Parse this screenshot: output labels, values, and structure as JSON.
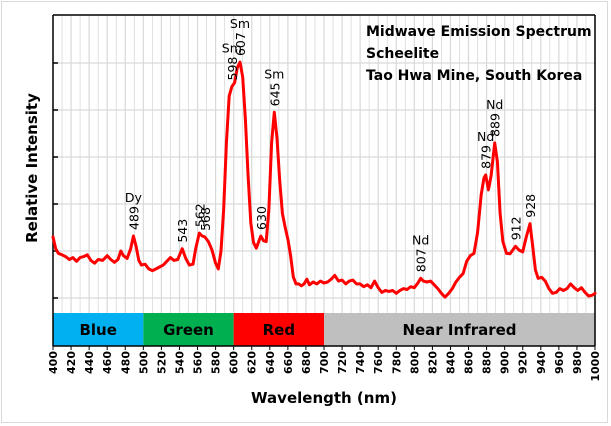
{
  "chart_data": {
    "type": "line",
    "title": [
      "Midwave Emission Spectrum",
      "Scheelite",
      "Tao Hwa Mine, South Korea"
    ],
    "xlabel": "Wavelength (nm)",
    "ylabel": "Relative Intensity",
    "xlim": [
      400,
      1000
    ],
    "ylim": [
      0,
      7
    ],
    "x_ticks": [
      400,
      420,
      440,
      460,
      480,
      500,
      520,
      540,
      560,
      580,
      600,
      620,
      640,
      660,
      680,
      700,
      720,
      740,
      760,
      780,
      800,
      820,
      840,
      860,
      880,
      900,
      920,
      940,
      960,
      980,
      1000
    ],
    "y_ticks": [
      1,
      2,
      3,
      4,
      5,
      6
    ],
    "y_tick_labels_visible": false,
    "grid": true,
    "series": [
      {
        "name": "Emission",
        "color": "#ff0000",
        "points": [
          [
            400,
            2.3
          ],
          [
            403,
            2.05
          ],
          [
            406,
            1.95
          ],
          [
            410,
            1.92
          ],
          [
            414,
            1.88
          ],
          [
            418,
            1.82
          ],
          [
            422,
            1.86
          ],
          [
            426,
            1.78
          ],
          [
            430,
            1.86
          ],
          [
            434,
            1.88
          ],
          [
            438,
            1.92
          ],
          [
            442,
            1.8
          ],
          [
            446,
            1.74
          ],
          [
            450,
            1.82
          ],
          [
            455,
            1.8
          ],
          [
            460,
            1.9
          ],
          [
            464,
            1.82
          ],
          [
            468,
            1.76
          ],
          [
            472,
            1.82
          ],
          [
            475,
            2.0
          ],
          [
            478,
            1.9
          ],
          [
            482,
            1.84
          ],
          [
            486,
            2.05
          ],
          [
            489,
            2.32
          ],
          [
            492,
            2.1
          ],
          [
            495,
            1.8
          ],
          [
            498,
            1.7
          ],
          [
            502,
            1.72
          ],
          [
            506,
            1.62
          ],
          [
            510,
            1.58
          ],
          [
            514,
            1.62
          ],
          [
            518,
            1.66
          ],
          [
            522,
            1.7
          ],
          [
            526,
            1.78
          ],
          [
            530,
            1.86
          ],
          [
            534,
            1.8
          ],
          [
            538,
            1.82
          ],
          [
            543,
            2.05
          ],
          [
            547,
            1.84
          ],
          [
            551,
            1.7
          ],
          [
            555,
            1.72
          ],
          [
            558,
            2.05
          ],
          [
            562,
            2.38
          ],
          [
            565,
            2.32
          ],
          [
            568,
            2.3
          ],
          [
            572,
            2.2
          ],
          [
            576,
            2.02
          ],
          [
            580,
            1.74
          ],
          [
            583,
            1.62
          ],
          [
            586,
            2.0
          ],
          [
            589,
            2.9
          ],
          [
            592,
            4.3
          ],
          [
            595,
            5.3
          ],
          [
            598,
            5.5
          ],
          [
            601,
            5.58
          ],
          [
            604,
            5.9
          ],
          [
            607,
            6.02
          ],
          [
            610,
            5.7
          ],
          [
            613,
            4.8
          ],
          [
            616,
            3.6
          ],
          [
            619,
            2.6
          ],
          [
            622,
            2.18
          ],
          [
            625,
            2.06
          ],
          [
            628,
            2.22
          ],
          [
            630,
            2.32
          ],
          [
            633,
            2.22
          ],
          [
            636,
            2.2
          ],
          [
            639,
            2.9
          ],
          [
            642,
            4.3
          ],
          [
            645,
            4.95
          ],
          [
            648,
            4.4
          ],
          [
            651,
            3.5
          ],
          [
            654,
            2.8
          ],
          [
            657,
            2.5
          ],
          [
            660,
            2.25
          ],
          [
            663,
            1.9
          ],
          [
            666,
            1.45
          ],
          [
            669,
            1.3
          ],
          [
            672,
            1.3
          ],
          [
            675,
            1.26
          ],
          [
            678,
            1.3
          ],
          [
            681,
            1.4
          ],
          [
            684,
            1.28
          ],
          [
            688,
            1.34
          ],
          [
            692,
            1.3
          ],
          [
            696,
            1.36
          ],
          [
            700,
            1.32
          ],
          [
            704,
            1.34
          ],
          [
            708,
            1.4
          ],
          [
            712,
            1.48
          ],
          [
            716,
            1.36
          ],
          [
            720,
            1.38
          ],
          [
            724,
            1.3
          ],
          [
            728,
            1.36
          ],
          [
            732,
            1.38
          ],
          [
            736,
            1.3
          ],
          [
            740,
            1.3
          ],
          [
            744,
            1.24
          ],
          [
            748,
            1.28
          ],
          [
            752,
            1.22
          ],
          [
            756,
            1.36
          ],
          [
            760,
            1.22
          ],
          [
            764,
            1.12
          ],
          [
            768,
            1.16
          ],
          [
            772,
            1.14
          ],
          [
            776,
            1.16
          ],
          [
            780,
            1.1
          ],
          [
            784,
            1.16
          ],
          [
            788,
            1.2
          ],
          [
            792,
            1.18
          ],
          [
            796,
            1.24
          ],
          [
            800,
            1.22
          ],
          [
            804,
            1.32
          ],
          [
            807,
            1.42
          ],
          [
            810,
            1.36
          ],
          [
            814,
            1.34
          ],
          [
            818,
            1.36
          ],
          [
            822,
            1.28
          ],
          [
            826,
            1.2
          ],
          [
            830,
            1.1
          ],
          [
            834,
            1.02
          ],
          [
            838,
            1.1
          ],
          [
            842,
            1.2
          ],
          [
            846,
            1.34
          ],
          [
            850,
            1.44
          ],
          [
            854,
            1.52
          ],
          [
            858,
            1.78
          ],
          [
            862,
            1.9
          ],
          [
            866,
            1.95
          ],
          [
            870,
            2.4
          ],
          [
            874,
            3.2
          ],
          [
            877,
            3.55
          ],
          [
            879,
            3.62
          ],
          [
            882,
            3.3
          ],
          [
            885,
            3.6
          ],
          [
            889,
            4.3
          ],
          [
            892,
            3.9
          ],
          [
            895,
            2.8
          ],
          [
            898,
            2.2
          ],
          [
            902,
            1.95
          ],
          [
            906,
            1.94
          ],
          [
            910,
            2.05
          ],
          [
            912,
            2.1
          ],
          [
            916,
            2.02
          ],
          [
            920,
            1.98
          ],
          [
            924,
            2.3
          ],
          [
            928,
            2.58
          ],
          [
            931,
            2.1
          ],
          [
            934,
            1.6
          ],
          [
            937,
            1.42
          ],
          [
            941,
            1.44
          ],
          [
            945,
            1.36
          ],
          [
            949,
            1.2
          ],
          [
            953,
            1.1
          ],
          [
            957,
            1.12
          ],
          [
            961,
            1.2
          ],
          [
            965,
            1.16
          ],
          [
            969,
            1.2
          ],
          [
            973,
            1.3
          ],
          [
            977,
            1.22
          ],
          [
            981,
            1.16
          ],
          [
            985,
            1.22
          ],
          [
            989,
            1.12
          ],
          [
            993,
            1.04
          ],
          [
            997,
            1.06
          ],
          [
            1000,
            1.1
          ]
        ]
      }
    ],
    "peak_labels": [
      {
        "x": 489,
        "value": "489",
        "element": "Dy"
      },
      {
        "x": 543,
        "value": "543",
        "element": ""
      },
      {
        "x": 562,
        "value": "562",
        "element": ""
      },
      {
        "x": 568,
        "value": "568",
        "element": ""
      },
      {
        "x": 598,
        "value": "598",
        "element": "Sm"
      },
      {
        "x": 607,
        "value": "607",
        "element": "Sm"
      },
      {
        "x": 630,
        "value": "630",
        "element": ""
      },
      {
        "x": 645,
        "value": "645",
        "element": "Sm"
      },
      {
        "x": 807,
        "value": "807",
        "element": "Nd"
      },
      {
        "x": 879,
        "value": "879",
        "element": "Nd"
      },
      {
        "x": 889,
        "value": "889",
        "element": "Nd"
      },
      {
        "x": 912,
        "value": "912",
        "element": ""
      },
      {
        "x": 928,
        "value": "928",
        "element": ""
      }
    ],
    "bands": [
      {
        "label": "Blue",
        "from": 400,
        "to": 500,
        "color": "#00b0f0"
      },
      {
        "label": "Green",
        "from": 500,
        "to": 600,
        "color": "#00b050"
      },
      {
        "label": "Red",
        "from": 600,
        "to": 700,
        "color": "#ff0000"
      },
      {
        "label": "Near Infrared",
        "from": 700,
        "to": 1000,
        "color": "#bfbfbf"
      }
    ]
  }
}
